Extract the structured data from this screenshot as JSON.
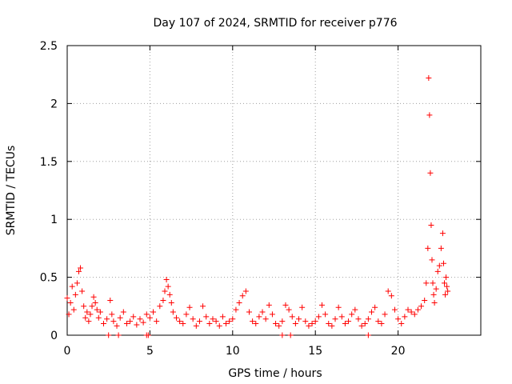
{
  "chart_data": {
    "type": "scatter",
    "title": "Day 107 of 2024, SRMTID for receiver p776",
    "xlabel": "GPS time / hours",
    "ylabel": "SRMTID / TECUs",
    "xlim": [
      0,
      25
    ],
    "ylim": [
      0,
      2.5
    ],
    "xticks": [
      0,
      5,
      10,
      15,
      20
    ],
    "yticks": [
      0,
      0.5,
      1,
      1.5,
      2,
      2.5
    ],
    "xtick_labels": [
      "0",
      "5",
      "10",
      "15",
      "20"
    ],
    "ytick_labels": [
      "0",
      "0.5",
      "1",
      "1.5",
      "2",
      "2.5"
    ],
    "grid": true,
    "marker": "+",
    "marker_color": "#ff0000",
    "series": [
      {
        "name": "SRMTID",
        "x": [
          0.0,
          0.1,
          0.2,
          0.3,
          0.4,
          0.5,
          0.6,
          0.7,
          0.8,
          0.9,
          1.0,
          1.1,
          1.2,
          1.3,
          1.4,
          1.5,
          1.6,
          1.7,
          1.8,
          1.9,
          2.0,
          2.2,
          2.4,
          2.6,
          2.7,
          2.8,
          3.0,
          3.2,
          3.4,
          3.6,
          3.8,
          4.0,
          4.2,
          4.4,
          4.6,
          4.8,
          5.0,
          5.2,
          5.4,
          5.6,
          5.8,
          5.9,
          6.0,
          6.1,
          6.2,
          6.3,
          6.4,
          6.6,
          6.8,
          7.0,
          7.2,
          7.4,
          7.6,
          7.8,
          8.0,
          8.2,
          8.4,
          8.6,
          8.8,
          9.0,
          9.2,
          9.4,
          9.6,
          9.8,
          10.0,
          10.2,
          10.4,
          10.6,
          10.8,
          11.0,
          11.2,
          11.4,
          11.6,
          11.8,
          12.0,
          12.2,
          12.4,
          12.6,
          12.8,
          13.0,
          13.2,
          13.4,
          13.6,
          13.8,
          14.0,
          14.2,
          14.4,
          14.6,
          14.8,
          15.0,
          15.2,
          15.4,
          15.6,
          15.8,
          16.0,
          16.2,
          16.4,
          16.6,
          16.8,
          17.0,
          17.2,
          17.4,
          17.6,
          17.8,
          18.0,
          18.2,
          18.4,
          18.6,
          18.8,
          19.0,
          19.2,
          19.4,
          19.6,
          19.8,
          20.0,
          20.2,
          20.4,
          20.6,
          20.8,
          21.0,
          21.2,
          21.4,
          21.6,
          21.7,
          21.8,
          21.85,
          21.9,
          21.95,
          22.0,
          22.05,
          22.1,
          22.15,
          22.2,
          22.3,
          22.4,
          22.5,
          22.6,
          22.7,
          22.75,
          22.8,
          22.85,
          22.9,
          22.95,
          23.0
        ],
        "y": [
          0.32,
          0.18,
          0.28,
          0.42,
          0.22,
          0.35,
          0.45,
          0.55,
          0.58,
          0.38,
          0.25,
          0.15,
          0.2,
          0.12,
          0.18,
          0.25,
          0.33,
          0.28,
          0.22,
          0.15,
          0.2,
          0.1,
          0.14,
          0.3,
          0.18,
          0.12,
          0.08,
          0.15,
          0.2,
          0.1,
          0.12,
          0.16,
          0.09,
          0.14,
          0.11,
          0.18,
          0.15,
          0.2,
          0.12,
          0.25,
          0.3,
          0.38,
          0.48,
          0.42,
          0.35,
          0.28,
          0.2,
          0.15,
          0.12,
          0.1,
          0.18,
          0.24,
          0.14,
          0.08,
          0.12,
          0.25,
          0.16,
          0.1,
          0.14,
          0.12,
          0.08,
          0.16,
          0.1,
          0.12,
          0.14,
          0.22,
          0.28,
          0.34,
          0.38,
          0.2,
          0.12,
          0.1,
          0.16,
          0.2,
          0.14,
          0.26,
          0.18,
          0.1,
          0.08,
          0.12,
          0.26,
          0.22,
          0.16,
          0.1,
          0.14,
          0.24,
          0.12,
          0.08,
          0.1,
          0.12,
          0.16,
          0.26,
          0.18,
          0.1,
          0.08,
          0.14,
          0.24,
          0.16,
          0.1,
          0.12,
          0.18,
          0.22,
          0.14,
          0.08,
          0.1,
          0.14,
          0.2,
          0.24,
          0.12,
          0.1,
          0.18,
          0.38,
          0.34,
          0.22,
          0.14,
          0.1,
          0.16,
          0.22,
          0.2,
          0.18,
          0.22,
          0.25,
          0.3,
          0.45,
          0.75,
          2.22,
          1.9,
          1.4,
          0.95,
          0.65,
          0.45,
          0.35,
          0.28,
          0.4,
          0.55,
          0.6,
          0.75,
          0.88,
          0.62,
          0.45,
          0.35,
          0.5,
          0.42,
          0.38
        ]
      }
    ],
    "baseline_markers_x": [
      2.5,
      3.1,
      4.8,
      4.9,
      13.0,
      13.5,
      18.2
    ]
  }
}
